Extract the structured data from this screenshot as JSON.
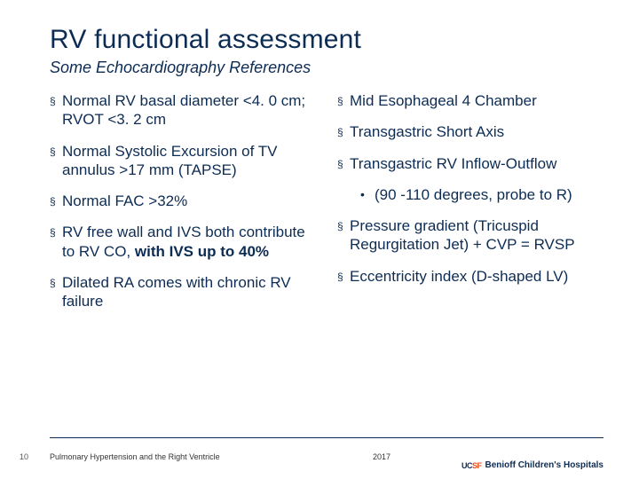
{
  "title": "RV functional assessment",
  "subtitle": "Some Echocardiography References",
  "left": {
    "b1": "Normal RV basal diameter <4. 0 cm; RVOT <3. 2 cm",
    "b2": "Normal Systolic Excursion of TV annulus >17 mm (TAPSE)",
    "b3": "Normal FAC >32%",
    "b4_pre": "RV free wall and IVS both contribute to RV CO, ",
    "b4_bold": "with IVS up to 40%",
    "b5": "Dilated RA comes with chronic RV failure"
  },
  "right": {
    "b1": "Mid Esophageal 4 Chamber",
    "b2": "Transgastric Short Axis",
    "b3": "Transgastric RV Inflow-Outflow",
    "sub": "(90 -110 degrees, probe to R)",
    "b4": "Pressure gradient (Tricuspid Regurgitation Jet) + CVP = RVSP",
    "b5": "Eccentricity index (D-shaped LV)"
  },
  "footer": {
    "page": "10",
    "left": "Pulmonary Hypertension and the Right Ventricle",
    "year": "2017",
    "logo_brand_a": "UC",
    "logo_brand_b": "SF",
    "logo_text": "Benioff Children's Hospitals"
  },
  "marker": "§",
  "dot": "•"
}
